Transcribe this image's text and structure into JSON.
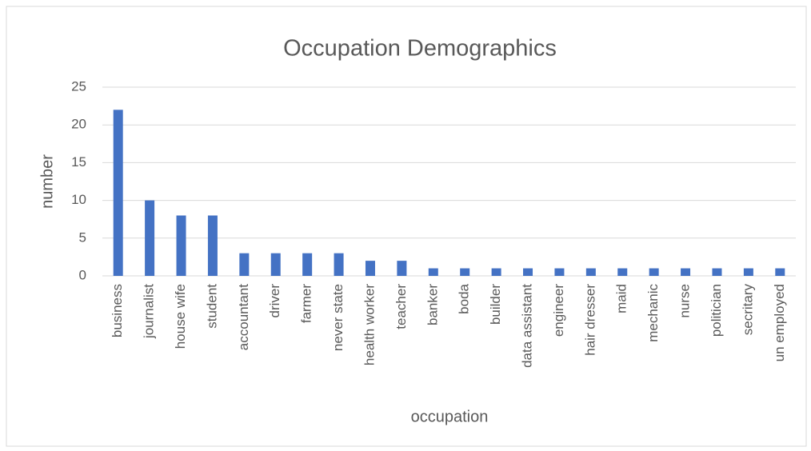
{
  "chart_data": {
    "type": "bar",
    "title": "Occupation Demographics",
    "x_label": "occupation",
    "y_label": "number",
    "categories": [
      "business",
      "journalist",
      "house wife",
      "student",
      "accountant",
      "driver",
      "farmer",
      "never state",
      "health worker",
      "teacher",
      "banker",
      "boda",
      "builder",
      "data assistant",
      "engineer",
      "hair dresser",
      "maid",
      "mechanic",
      "nurse",
      "politician",
      "secritary",
      "un employed"
    ],
    "values": [
      22,
      10,
      8,
      8,
      3,
      3,
      3,
      3,
      2,
      2,
      1,
      1,
      1,
      1,
      1,
      1,
      1,
      1,
      1,
      1,
      1,
      1
    ],
    "color": "#4472c4",
    "ylim": [
      0,
      25
    ],
    "yticks": [
      0,
      5,
      10,
      15,
      20,
      25
    ],
    "grid": true
  }
}
